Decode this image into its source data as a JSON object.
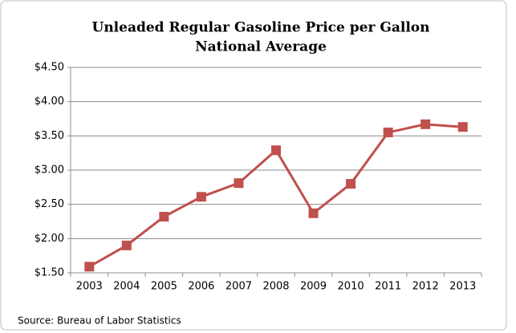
{
  "chart_data": {
    "type": "line",
    "title": "Unleaded Regular Gasoline Price per Gallon",
    "subtitle": "National Average",
    "source": "Source: Bureau of Labor Statistics",
    "categories": [
      "2003",
      "2004",
      "2005",
      "2006",
      "2007",
      "2008",
      "2009",
      "2010",
      "2011",
      "2012",
      "2013"
    ],
    "series": [
      {
        "color": "#c0504d",
        "values": [
          1.59,
          1.9,
          2.32,
          2.61,
          2.81,
          3.29,
          2.37,
          2.8,
          3.55,
          3.67,
          3.63
        ]
      }
    ],
    "ylim": [
      1.5,
      4.5
    ],
    "yticks": [
      {
        "value": 1.5,
        "label": "$1.50"
      },
      {
        "value": 2.0,
        "label": "$2.00"
      },
      {
        "value": 2.5,
        "label": "$2.50"
      },
      {
        "value": 3.0,
        "label": "$3.00"
      },
      {
        "value": 3.5,
        "label": "$3.50"
      },
      {
        "value": 4.0,
        "label": "$4.00"
      },
      {
        "value": 4.5,
        "label": "$4.50"
      }
    ],
    "grid": true
  }
}
